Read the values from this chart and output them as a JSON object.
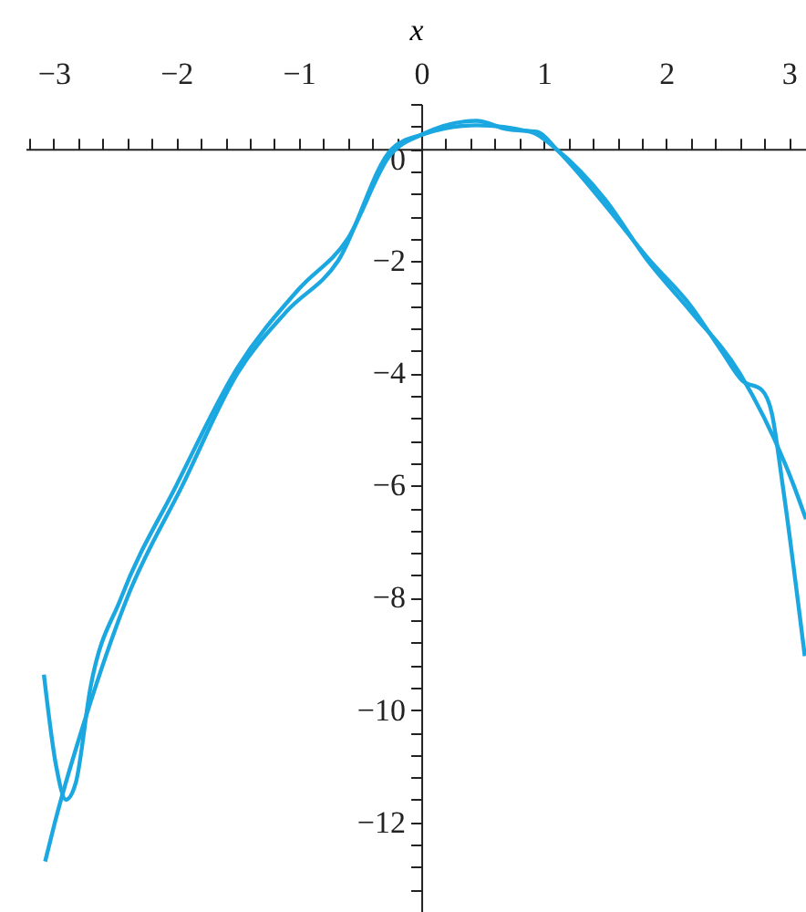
{
  "chart_data": {
    "type": "line",
    "xlabel": "x",
    "series": [
      {
        "color": "#1ba8e0",
        "x": [
          -3.07,
          -2.99,
          -2.72,
          -2.4,
          -1.95,
          -1.5,
          -1.1,
          -0.68,
          -0.24,
          0,
          0.45,
          0.9,
          1.1,
          1.5,
          1.85,
          2.2,
          2.6,
          3.04,
          3.14
        ],
        "values": [
          -12.7,
          -12,
          -10,
          -8,
          -6,
          -4,
          -2.9,
          -2,
          0,
          0.25,
          0.42,
          0.3,
          0,
          -0.9,
          -2,
          -2.9,
          -4,
          -6,
          -6.6
        ]
      },
      {
        "color": "#1ba8e0",
        "x": [
          -3.08,
          -2.98,
          -2.9,
          -2.82,
          -2.7,
          -2.45,
          -2.0,
          -1.5,
          -1.0,
          -0.6,
          -0.25,
          0,
          0.45,
          0.7,
          0.95,
          1.1,
          1.5,
          1.85,
          2.2,
          2.45,
          2.62,
          2.78,
          2.86,
          2.95,
          3.13
        ],
        "values": [
          -9.37,
          -11.0,
          -11.6,
          -11.3,
          -9.6,
          -8.0,
          -6.0,
          -3.9,
          -2.5,
          -1.6,
          -0.1,
          0.25,
          0.5,
          0.35,
          0.3,
          0,
          -1.0,
          -1.95,
          -2.8,
          -3.6,
          -4.13,
          -4.3,
          -4.7,
          -6,
          -9.04
        ]
      }
    ],
    "xlim": [
      -3.23,
      3.14
    ],
    "ylim": [
      -13.6,
      0.8
    ],
    "xticks": [
      {
        "value": -3.2,
        "label": null
      },
      -3,
      {
        "value": -2.8,
        "label": null
      },
      {
        "value": -2.6,
        "label": null
      },
      {
        "value": -2.4,
        "label": null
      },
      {
        "value": -2.2,
        "label": null
      },
      -2,
      {
        "value": -1.8,
        "label": null
      },
      {
        "value": -1.6,
        "label": null
      },
      {
        "value": -1.4,
        "label": null
      },
      {
        "value": -1.2,
        "label": null
      },
      -1,
      {
        "value": -0.8,
        "label": null
      },
      {
        "value": -0.6,
        "label": null
      },
      {
        "value": -0.4,
        "label": null
      },
      {
        "value": -0.2,
        "label": null
      },
      0,
      {
        "value": 0.2,
        "label": null
      },
      {
        "value": 0.4,
        "label": null
      },
      {
        "value": 0.6,
        "label": null
      },
      {
        "value": 0.8,
        "label": null
      },
      1,
      {
        "value": 1.2,
        "label": null
      },
      {
        "value": 1.4,
        "label": null
      },
      {
        "value": 1.6,
        "label": null
      },
      {
        "value": 1.8,
        "label": null
      },
      2,
      {
        "value": 2.2,
        "label": null
      },
      {
        "value": 2.4,
        "label": null
      },
      {
        "value": 2.6,
        "label": null
      },
      {
        "value": 2.8,
        "label": null
      },
      3
    ],
    "yticks": [
      {
        "value": 0.8,
        "label": null
      },
      {
        "value": 0.4,
        "label": null
      },
      0,
      {
        "value": -0.4,
        "label": null
      },
      {
        "value": -0.8,
        "label": null
      },
      {
        "value": -1.2,
        "label": null
      },
      {
        "value": -1.6,
        "label": null
      },
      -2,
      {
        "value": -2.4,
        "label": null
      },
      {
        "value": -2.8,
        "label": null
      },
      {
        "value": -3.2,
        "label": null
      },
      {
        "value": -3.6,
        "label": null
      },
      -4,
      {
        "value": -4.4,
        "label": null
      },
      {
        "value": -4.8,
        "label": null
      },
      {
        "value": -5.2,
        "label": null
      },
      {
        "value": -5.6,
        "label": null
      },
      -6,
      {
        "value": -6.4,
        "label": null
      },
      {
        "value": -6.8,
        "label": null
      },
      {
        "value": -7.2,
        "label": null
      },
      {
        "value": -7.6,
        "label": null
      },
      -8,
      {
        "value": -8.4,
        "label": null
      },
      {
        "value": -8.8,
        "label": null
      },
      {
        "value": -9.2,
        "label": null
      },
      {
        "value": -9.6,
        "label": null
      },
      -10,
      {
        "value": -10.4,
        "label": null
      },
      {
        "value": -10.8,
        "label": null
      },
      {
        "value": -11.2,
        "label": null
      },
      {
        "value": -11.6,
        "label": null
      },
      -12,
      {
        "value": -12.4,
        "label": null
      },
      {
        "value": -12.8,
        "label": null
      },
      {
        "value": -13.2,
        "label": null
      },
      {
        "value": -13.6,
        "label": null
      }
    ],
    "grid": false,
    "marker": "none",
    "line_style": "solid"
  }
}
